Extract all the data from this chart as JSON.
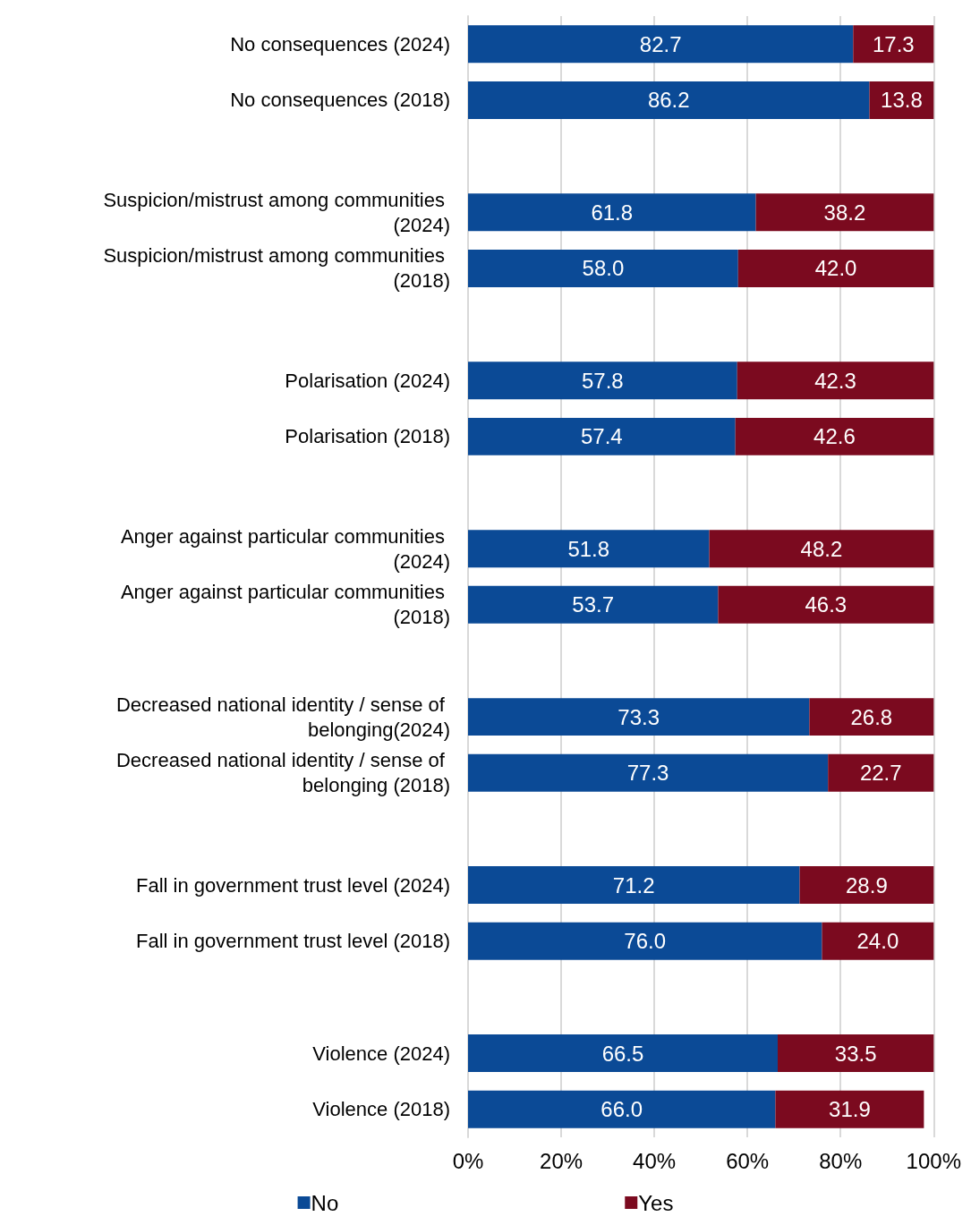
{
  "chart_data": {
    "type": "bar",
    "orientation": "horizontal",
    "stacked": true,
    "categories": [
      "No consequences (2024)",
      "No consequences (2018)",
      null,
      "Suspicion/mistrust among communities (2024)",
      "Suspicion/mistrust among communities (2018)",
      null,
      "Polarisation (2024)",
      "Polarisation (2018)",
      null,
      "Anger against particular communities (2024)",
      "Anger against particular communities (2018)",
      null,
      "Decreased national identity / sense of belonging(2024)",
      "Decreased national identity / sense of belonging (2018)",
      null,
      "Fall in government trust level (2024)",
      "Fall in government trust level (2018)",
      null,
      "Violence (2024)",
      "Violence (2018)"
    ],
    "series": [
      {
        "name": "No",
        "color": "#0b4a96",
        "values": [
          82.7,
          86.2,
          null,
          61.8,
          58.0,
          null,
          57.8,
          57.4,
          null,
          51.8,
          53.7,
          null,
          73.3,
          77.3,
          null,
          71.2,
          76.0,
          null,
          66.5,
          66.0
        ],
        "value_labels": [
          "82.7",
          "86.2",
          null,
          "61.8",
          "58.0",
          null,
          "57.8",
          "57.4",
          null,
          "51.8",
          "53.7",
          null,
          "73.3",
          "77.3",
          null,
          "71.2",
          "76.0",
          null,
          "66.5",
          "66.0"
        ]
      },
      {
        "name": "Yes",
        "color": "#7b0a1f",
        "values": [
          17.3,
          13.8,
          null,
          38.2,
          42.0,
          null,
          42.3,
          42.6,
          null,
          48.2,
          46.3,
          null,
          26.8,
          22.7,
          null,
          28.9,
          24.0,
          null,
          33.5,
          31.9
        ],
        "value_labels": [
          "17.3",
          "13.8",
          null,
          "38.2",
          "42.0",
          null,
          "42.3",
          "42.6",
          null,
          "48.2",
          "46.3",
          null,
          "26.8",
          "22.7",
          null,
          "28.9",
          "24.0",
          null,
          "33.5",
          "31.9"
        ]
      }
    ],
    "xlim": [
      0,
      100
    ],
    "xticks": [
      {
        "value": 0,
        "label": "0%"
      },
      {
        "value": 20,
        "label": "20%"
      },
      {
        "value": 40,
        "label": "40%"
      },
      {
        "value": 60,
        "label": "60%"
      },
      {
        "value": 80,
        "label": "80%"
      },
      {
        "value": 100,
        "label": "100%"
      }
    ],
    "grid": "x",
    "legend": "bottom"
  }
}
